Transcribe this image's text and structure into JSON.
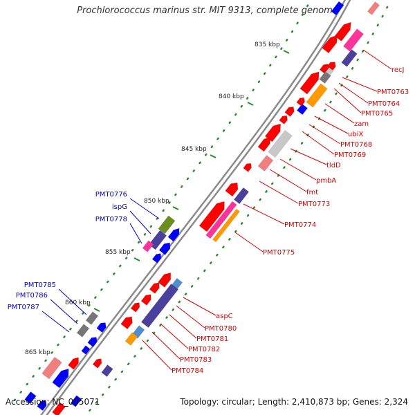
{
  "title": "Prochlorococcus marinus str. MIT 9313, complete genome",
  "footer": {
    "accession": "Accession: NC_005071",
    "summary": "Topology: circular; Length: 2,410,873 bp; Genes: 2,324"
  },
  "colors": {
    "backbone": "#8a8a8a",
    "tick": "#2a8a2a",
    "forward_label": "#d40000",
    "reverse_label": "#0000c8",
    "gene_red": "#ff0000",
    "gene_blue": "#0000ff",
    "gene_gray": "#777777",
    "gene_lightgray": "#c8c8c8",
    "gene_orange": "#ff9900",
    "gene_pink": "#ff3399",
    "gene_indigo": "#4b3f9e",
    "gene_steel": "#4f8fcf",
    "gene_olive": "#6b8e23",
    "gene_salmon": "#f08080"
  },
  "ticks": [
    "835 kbp",
    "840 kbp",
    "845 kbp",
    "850 kbp",
    "855 kbp",
    "860 kbp",
    "865 kbp"
  ],
  "forward_labels": [
    "recJ",
    "PMT0763",
    "PMT0764",
    "PMT0765",
    "zam",
    "ubiX",
    "PMT0768",
    "PMT0769",
    "tldD",
    "pmbA",
    "fmt",
    "PMT0773",
    "PMT0774",
    "PMT0775",
    "aspC",
    "PMT0780",
    "PMT0781",
    "PMT0782",
    "PMT0783",
    "PMT0784"
  ],
  "reverse_labels": [
    "PMT0776",
    "ispG",
    "PMT0778",
    "PMT0785",
    "PMT0786",
    "PMT0787"
  ]
}
